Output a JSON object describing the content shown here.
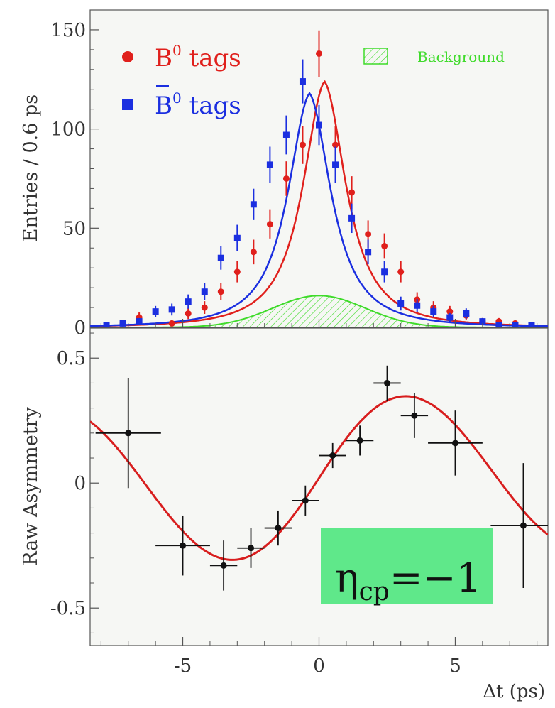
{
  "chart_data": [
    {
      "type": "scatter",
      "ylabel": "Entries / 0.6 ps",
      "xlim": [
        -8.4,
        8.4
      ],
      "ylim": [
        0,
        160
      ],
      "yticks": [
        0,
        50,
        100,
        150
      ],
      "ytick_labels": [
        "0",
        "50",
        "100",
        "150"
      ],
      "legend": {
        "entries": [
          {
            "base": "B",
            "sup": "0",
            "suffix": " tags",
            "marker": "circle"
          },
          {
            "base": "B",
            "sup": "0",
            "suffix": " tags",
            "marker": "square",
            "bar": true
          }
        ],
        "background_label": "Background",
        "placement": "top"
      },
      "series": [
        {
          "marker": "circle",
          "color": "#e0201c",
          "x": [
            -7.2,
            -6.6,
            -5.4,
            -4.8,
            -4.2,
            -3.6,
            -3.0,
            -2.4,
            -1.8,
            -1.2,
            -0.6,
            0.0,
            0.6,
            1.2,
            1.8,
            2.4,
            3.0,
            3.6,
            4.2,
            4.8,
            5.4,
            6.0,
            6.6,
            7.2,
            7.8
          ],
          "y": [
            2,
            5,
            2,
            7,
            10,
            18,
            28,
            38,
            52,
            75,
            92,
            138,
            92,
            68,
            47,
            41,
            28,
            14,
            10,
            8,
            6,
            3,
            3,
            2,
            1
          ],
          "err": [
            1.5,
            2.5,
            1.5,
            2.8,
            3.2,
            4.2,
            5.3,
            6.2,
            7.2,
            8.7,
            9.6,
            11.7,
            9.6,
            8.2,
            6.9,
            6.4,
            5.3,
            3.7,
            3.2,
            2.8,
            2.4,
            1.7,
            1.7,
            1.4,
            1.0
          ]
        },
        {
          "marker": "square",
          "color": "#1b2fe0",
          "x": [
            -7.8,
            -7.2,
            -6.6,
            -6.0,
            -5.4,
            -4.8,
            -4.2,
            -3.6,
            -3.0,
            -2.4,
            -1.8,
            -1.2,
            -0.6,
            0.0,
            0.6,
            1.2,
            1.8,
            2.4,
            3.0,
            3.6,
            4.2,
            4.8,
            5.4,
            6.0,
            6.6,
            7.2,
            7.8
          ],
          "y": [
            1,
            2,
            3,
            8,
            9,
            13,
            18,
            35,
            45,
            62,
            82,
            97,
            124,
            102,
            82,
            55,
            38,
            28,
            12,
            11,
            8,
            5,
            7,
            3,
            1,
            1,
            1
          ],
          "err": [
            1.0,
            1.4,
            1.7,
            2.8,
            3.0,
            3.6,
            4.2,
            5.9,
            6.7,
            7.9,
            9.1,
            9.8,
            11.1,
            10.1,
            9.1,
            7.4,
            6.2,
            5.3,
            3.5,
            3.3,
            2.8,
            2.2,
            2.6,
            1.7,
            1.0,
            1.0,
            1.0
          ]
        }
      ],
      "curves": [
        {
          "color": "#e0201c",
          "peak": 124,
          "center": 0.2
        },
        {
          "color": "#1b2fe0",
          "peak": 118,
          "center": -0.35
        },
        {
          "color": "#3fdb2a",
          "peak": 16,
          "center": 0.0,
          "fill": "hatched"
        }
      ]
    },
    {
      "type": "scatter",
      "ylabel": "Raw Asymmetry",
      "xlabel": "Δt (ps)",
      "xlim": [
        -8.4,
        8.4
      ],
      "ylim": [
        -0.65,
        0.62
      ],
      "xticks": [
        -5,
        0,
        5
      ],
      "xtick_labels": [
        "-5",
        "0",
        "5"
      ],
      "yticks": [
        -0.5,
        0,
        0.5
      ],
      "ytick_labels": [
        "-0.5",
        "0",
        "0.5"
      ],
      "series": [
        {
          "color": "#111111",
          "x": [
            -7.0,
            -5.0,
            -3.5,
            -2.5,
            -1.5,
            -0.5,
            0.5,
            1.5,
            2.5,
            3.5,
            5.0,
            7.5
          ],
          "y": [
            0.2,
            -0.25,
            -0.33,
            -0.26,
            -0.18,
            -0.07,
            0.11,
            0.17,
            0.4,
            0.27,
            0.16,
            -0.17
          ],
          "xerr": [
            1.2,
            1.0,
            0.5,
            0.5,
            0.5,
            0.5,
            0.5,
            0.5,
            0.5,
            0.5,
            1.0,
            1.2
          ],
          "yerr": [
            0.22,
            0.12,
            0.1,
            0.08,
            0.07,
            0.06,
            0.05,
            0.06,
            0.07,
            0.09,
            0.13,
            0.25
          ]
        }
      ],
      "fit_curve": {
        "color": "#d81e1e",
        "amplitude": 0.35,
        "omega": 0.48
      },
      "annotation": {
        "base": "η",
        "sub": "cp",
        "rest": "=−1",
        "box_color": "#5fe88a"
      }
    }
  ]
}
